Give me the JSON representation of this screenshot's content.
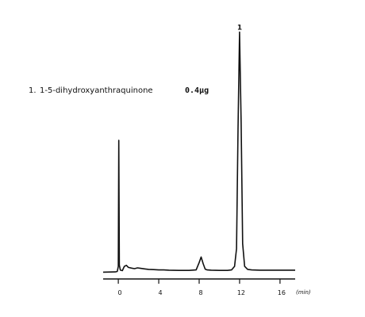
{
  "chart_data": {
    "type": "line",
    "title": "",
    "xlabel": "",
    "ylabel": "",
    "x_unit": "(min)",
    "xlim": [
      -1.5,
      17.5
    ],
    "ylim": [
      0,
      100
    ],
    "xticks": [
      0,
      4,
      8,
      12,
      16
    ],
    "grid": false,
    "legend": "none",
    "peak_label": "1",
    "annotation": {
      "number": "1.",
      "compound": "1-5-dihydroxyanthraquinone",
      "amount": "0.4μg"
    },
    "series": [
      {
        "values_note": "",
        "x": [
          -1.5,
          -0.3,
          -0.1,
          0.0,
          0.05,
          0.1,
          0.2,
          0.4,
          0.6,
          0.8,
          1.0,
          1.3,
          1.6,
          1.9,
          2.2,
          2.6,
          3.0,
          3.5,
          4.0,
          4.5,
          5.0,
          6.0,
          7.0,
          7.7,
          8.0,
          8.2,
          8.4,
          8.6,
          8.8,
          9.2,
          10.0,
          10.8,
          11.2,
          11.5,
          11.7,
          11.85,
          12.0,
          12.15,
          12.3,
          12.5,
          12.8,
          13.2,
          14.0,
          15.0,
          16.0,
          17.5
        ],
        "y": [
          2.7,
          2.8,
          3.0,
          5.0,
          55.0,
          5.5,
          3.5,
          3.3,
          5.0,
          5.4,
          4.6,
          4.3,
          4.1,
          4.4,
          4.2,
          4.0,
          3.8,
          3.7,
          3.6,
          3.6,
          3.5,
          3.4,
          3.4,
          3.6,
          6.5,
          8.7,
          6.0,
          3.9,
          3.6,
          3.5,
          3.4,
          3.4,
          3.6,
          5.0,
          12.0,
          60.0,
          98.0,
          62.0,
          14.0,
          5.0,
          3.8,
          3.6,
          3.5,
          3.5,
          3.5,
          3.5
        ]
      }
    ]
  }
}
